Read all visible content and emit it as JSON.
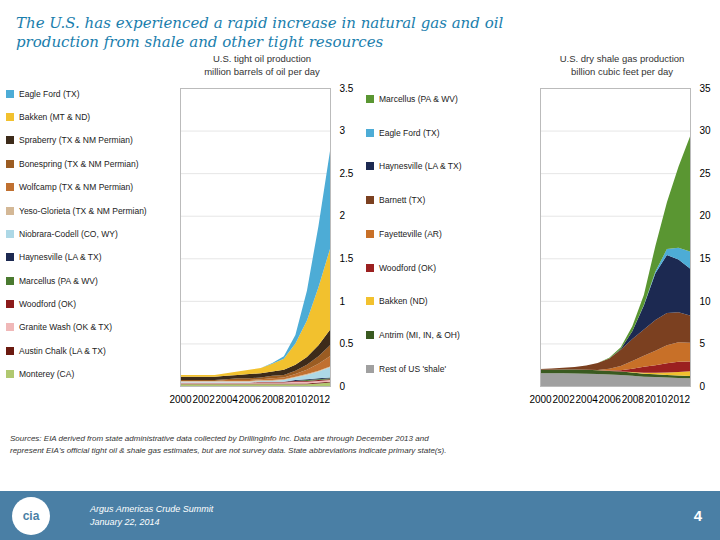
{
  "title": "The U.S. has experienced a rapid increase in natural gas and oil",
  "subtitle": "production from shale and other tight resources",
  "annotations": [
    "Sources: EIA derived from state administrative data collected by DrillingInfo Inc. Data are through December 2013 and\nrepresent EIA's official tight oil & shale gas estimates, but are not survey data. State abbreviations indicate primary state(s).",
    "Argus Americas Crude Summit",
    "January 22, 2014",
    "4",
    "cia"
  ],
  "chart_data": [
    {
      "type": "area",
      "stacked": true,
      "grid": true,
      "legend": "left",
      "title": "U.S. tight oil production",
      "subtitle": "million barrels of oil per day",
      "x": [
        2000,
        2001,
        2002,
        2003,
        2004,
        2005,
        2006,
        2007,
        2008,
        2009,
        2010,
        2011,
        2012,
        2013
      ],
      "xlim": [
        2000,
        2013
      ],
      "xticks": [
        2000,
        2002,
        2004,
        2006,
        2008,
        2010,
        2012
      ],
      "ylim": [
        0,
        3.5
      ],
      "yticks": [
        0,
        0.5,
        1,
        1.5,
        2,
        2.5,
        3,
        3.5
      ],
      "series": [
        {
          "name": "Monterey (CA)",
          "color": "#b0c870",
          "values": [
            0.02,
            0.02,
            0.02,
            0.02,
            0.02,
            0.02,
            0.02,
            0.02,
            0.02,
            0.02,
            0.02,
            0.02,
            0.03,
            0.04
          ]
        },
        {
          "name": "Austin Chalk (LA & TX)",
          "color": "#6b1a10",
          "values": [
            0.01,
            0.01,
            0.01,
            0.01,
            0.01,
            0.01,
            0.01,
            0.01,
            0.01,
            0.01,
            0.01,
            0.01,
            0.01,
            0.01
          ]
        },
        {
          "name": "Granite Wash (OK & TX)",
          "color": "#f0b8b8",
          "values": [
            0.01,
            0.01,
            0.01,
            0.01,
            0.01,
            0.01,
            0.01,
            0.01,
            0.01,
            0.01,
            0.02,
            0.02,
            0.02,
            0.02
          ]
        },
        {
          "name": "Woodford (OK)",
          "color": "#8b1a1a",
          "values": [
            0.0,
            0.0,
            0.0,
            0.0,
            0.0,
            0.0,
            0.0,
            0.01,
            0.01,
            0.01,
            0.01,
            0.01,
            0.01,
            0.01
          ]
        },
        {
          "name": "Marcellus (PA & WV)",
          "color": "#4a7a30",
          "values": [
            0.0,
            0.0,
            0.0,
            0.0,
            0.0,
            0.0,
            0.0,
            0.0,
            0.0,
            0.0,
            0.0,
            0.01,
            0.01,
            0.01
          ]
        },
        {
          "name": "Haynesville (LA & TX)",
          "color": "#1c2951",
          "values": [
            0.0,
            0.0,
            0.0,
            0.0,
            0.0,
            0.0,
            0.0,
            0.0,
            0.0,
            0.0,
            0.01,
            0.01,
            0.01,
            0.01
          ]
        },
        {
          "name": "Niobrara-Codell (CO, WY)",
          "color": "#add8e6",
          "values": [
            0.01,
            0.01,
            0.01,
            0.01,
            0.01,
            0.01,
            0.01,
            0.01,
            0.01,
            0.02,
            0.03,
            0.05,
            0.08,
            0.12
          ]
        },
        {
          "name": "Yeso-Glorieta (TX & NM Permian)",
          "color": "#d4b896",
          "values": [
            0.01,
            0.01,
            0.01,
            0.01,
            0.01,
            0.01,
            0.01,
            0.01,
            0.01,
            0.01,
            0.01,
            0.01,
            0.01,
            0.01
          ]
        },
        {
          "name": "Wolfcamp (TX & NM Permian)",
          "color": "#c07030",
          "values": [
            0.0,
            0.0,
            0.0,
            0.0,
            0.01,
            0.01,
            0.01,
            0.01,
            0.02,
            0.02,
            0.03,
            0.05,
            0.08,
            0.12
          ]
        },
        {
          "name": "Bonespring (TX & NM Permian)",
          "color": "#9b5c22",
          "values": [
            0.01,
            0.01,
            0.01,
            0.01,
            0.01,
            0.02,
            0.02,
            0.02,
            0.03,
            0.03,
            0.04,
            0.06,
            0.09,
            0.13
          ]
        },
        {
          "name": "Spraberry (TX & NM Permian)",
          "color": "#3d2b1a",
          "values": [
            0.04,
            0.04,
            0.04,
            0.04,
            0.04,
            0.04,
            0.05,
            0.05,
            0.05,
            0.06,
            0.07,
            0.09,
            0.13,
            0.18
          ]
        },
        {
          "name": "Bakken (MT & ND)",
          "color": "#f2c12e",
          "values": [
            0.02,
            0.02,
            0.02,
            0.02,
            0.03,
            0.04,
            0.05,
            0.06,
            0.09,
            0.13,
            0.25,
            0.43,
            0.68,
            0.95
          ]
        },
        {
          "name": "Eagle Ford (TX)",
          "color": "#4dacd6",
          "values": [
            0.0,
            0.0,
            0.0,
            0.0,
            0.0,
            0.0,
            0.0,
            0.0,
            0.01,
            0.03,
            0.1,
            0.35,
            0.72,
            1.15
          ]
        }
      ]
    },
    {
      "type": "area",
      "stacked": true,
      "grid": true,
      "legend": "left",
      "title": "U.S. dry shale gas production",
      "subtitle": "billion cubic feet per day",
      "x": [
        2000,
        2001,
        2002,
        2003,
        2004,
        2005,
        2006,
        2007,
        2008,
        2009,
        2010,
        2011,
        2012,
        2013
      ],
      "xlim": [
        2000,
        2013
      ],
      "xticks": [
        2000,
        2002,
        2004,
        2006,
        2008,
        2010,
        2012
      ],
      "ylim": [
        0,
        35
      ],
      "yticks": [
        0,
        5,
        10,
        15,
        20,
        25,
        30,
        35
      ],
      "series": [
        {
          "name": "Rest of US 'shale'",
          "color": "#a0a0a0",
          "values": [
            1.5,
            1.5,
            1.5,
            1.48,
            1.45,
            1.4,
            1.35,
            1.3,
            1.2,
            1.1,
            1.05,
            1.0,
            0.95,
            0.9
          ]
        },
        {
          "name": "Antrim (MI, IN, & OH)",
          "color": "#3a5a20",
          "values": [
            0.4,
            0.42,
            0.44,
            0.45,
            0.45,
            0.44,
            0.42,
            0.4,
            0.38,
            0.35,
            0.32,
            0.3,
            0.28,
            0.26
          ]
        },
        {
          "name": "Bakken (ND)",
          "color": "#f2c12e",
          "values": [
            0.0,
            0.0,
            0.0,
            0.0,
            0.0,
            0.0,
            0.0,
            0.0,
            0.05,
            0.1,
            0.18,
            0.28,
            0.42,
            0.58
          ]
        },
        {
          "name": "Woodford (OK)",
          "color": "#9b2020",
          "values": [
            0.0,
            0.0,
            0.0,
            0.0,
            0.0,
            0.0,
            0.05,
            0.15,
            0.4,
            0.7,
            0.9,
            1.1,
            1.2,
            1.15
          ]
        },
        {
          "name": "Fayetteville (AR)",
          "color": "#c87028",
          "values": [
            0.0,
            0.0,
            0.0,
            0.0,
            0.0,
            0.05,
            0.2,
            0.5,
            0.9,
            1.3,
            1.7,
            2.1,
            2.3,
            2.2
          ]
        },
        {
          "name": "Barnett (TX)",
          "color": "#7b4020",
          "values": [
            0.1,
            0.15,
            0.2,
            0.3,
            0.5,
            0.8,
            1.2,
            1.9,
            2.6,
            3.1,
            3.6,
            3.8,
            3.5,
            3.2
          ]
        },
        {
          "name": "Haynesville (LA & TX)",
          "color": "#1c2951",
          "values": [
            0.0,
            0.0,
            0.0,
            0.0,
            0.0,
            0.0,
            0.0,
            0.1,
            0.9,
            2.8,
            5.5,
            6.8,
            6.2,
            5.5
          ]
        },
        {
          "name": "Eagle Ford (TX)",
          "color": "#4dacd6",
          "values": [
            0.0,
            0.0,
            0.0,
            0.0,
            0.0,
            0.0,
            0.0,
            0.0,
            0.0,
            0.05,
            0.2,
            0.7,
            1.4,
            2.0
          ]
        },
        {
          "name": "Marcellus (PA & WV)",
          "color": "#5a9632",
          "values": [
            0.0,
            0.0,
            0.0,
            0.0,
            0.0,
            0.0,
            0.1,
            0.2,
            0.6,
            1.2,
            3.0,
            5.5,
            9.5,
            13.5
          ]
        }
      ]
    }
  ]
}
